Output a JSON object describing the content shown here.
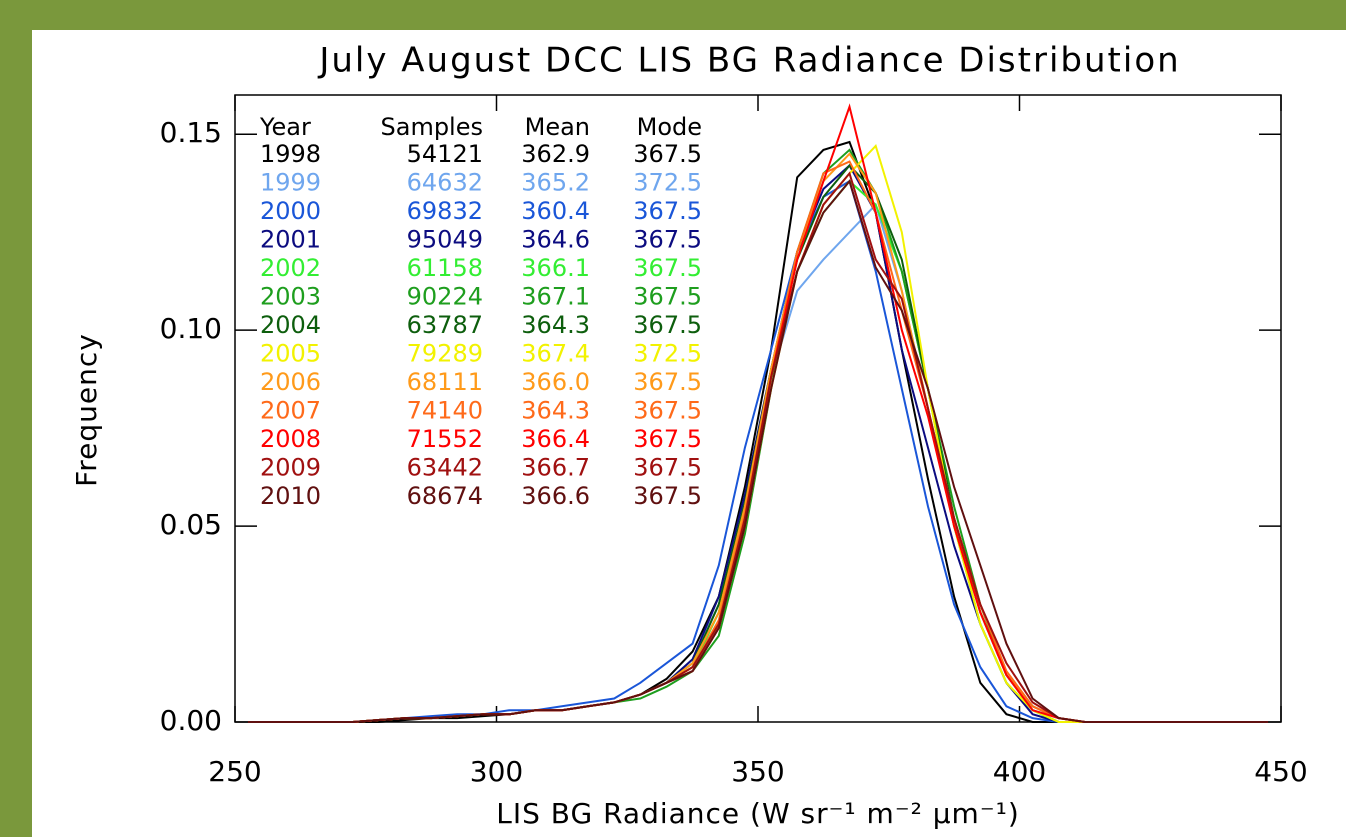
{
  "chart_data": {
    "type": "line",
    "title": "July August DCC LIS BG Radiance Distribution",
    "x_label": "LIS BG Radiance (W sr⁻¹ m⁻² μm⁻¹)",
    "y_label": "Frequency",
    "xlim": [
      250,
      450
    ],
    "ylim": [
      0,
      0.16
    ],
    "xticks": [
      250,
      300,
      350,
      400,
      450
    ],
    "yticks": [
      {
        "value": 0,
        "label": "0.00"
      },
      {
        "value": 0.05,
        "label": "0.05"
      },
      {
        "value": 0.1,
        "label": "0.10"
      },
      {
        "value": 0.15,
        "label": "0.15"
      }
    ],
    "legend_columns": [
      "Year",
      "Samples",
      "Mean",
      "Mode"
    ],
    "x": [
      252.5,
      257.5,
      262.5,
      267.5,
      272.5,
      277.5,
      282.5,
      287.5,
      292.5,
      297.5,
      302.5,
      307.5,
      312.5,
      317.5,
      322.5,
      327.5,
      332.5,
      337.5,
      342.5,
      347.5,
      352.5,
      357.5,
      362.5,
      367.5,
      372.5,
      377.5,
      382.5,
      387.5,
      392.5,
      397.5,
      402.5,
      407.5,
      412.5,
      417.5,
      422.5,
      427.5,
      432.5,
      437.5,
      442.5,
      447.5
    ],
    "series": [
      {
        "name": "1998",
        "color": "#000000",
        "samples": 54121,
        "mean": "362.9",
        "mode": 367.5,
        "values": [
          0,
          0,
          0,
          0,
          0,
          0,
          0.0005,
          0.001,
          0.001,
          0.0015,
          0.002,
          0.003,
          0.003,
          0.004,
          0.005,
          0.007,
          0.011,
          0.018,
          0.032,
          0.06,
          0.095,
          0.139,
          0.146,
          0.148,
          0.13,
          0.095,
          0.062,
          0.032,
          0.01,
          0.002,
          0,
          0,
          0,
          0,
          0,
          0,
          0,
          0,
          0,
          0
        ]
      },
      {
        "name": "1999",
        "color": "#6fa6ee",
        "samples": 64632,
        "mean": "365.2",
        "mode": 372.5,
        "values": [
          0,
          0,
          0,
          0,
          0,
          0.0005,
          0.001,
          0.001,
          0.0015,
          0.002,
          0.002,
          0.003,
          0.003,
          0.004,
          0.005,
          0.007,
          0.01,
          0.016,
          0.03,
          0.058,
          0.088,
          0.11,
          0.118,
          0.125,
          0.132,
          0.11,
          0.08,
          0.05,
          0.028,
          0.012,
          0.003,
          0.001,
          0,
          0,
          0,
          0,
          0,
          0,
          0,
          0
        ]
      },
      {
        "name": "2000",
        "color": "#1a56d8",
        "samples": 69832,
        "mean": "360.4",
        "mode": 367.5,
        "values": [
          0,
          0,
          0,
          0,
          0,
          0.0005,
          0.001,
          0.0015,
          0.002,
          0.002,
          0.003,
          0.003,
          0.004,
          0.005,
          0.006,
          0.01,
          0.015,
          0.02,
          0.04,
          0.07,
          0.095,
          0.12,
          0.134,
          0.138,
          0.115,
          0.085,
          0.055,
          0.03,
          0.014,
          0.004,
          0.001,
          0,
          0,
          0,
          0,
          0,
          0,
          0,
          0,
          0
        ]
      },
      {
        "name": "2001",
        "color": "#0c0c80",
        "samples": 95049,
        "mean": "364.6",
        "mode": 367.5,
        "values": [
          0,
          0,
          0,
          0,
          0,
          0.0005,
          0.001,
          0.001,
          0.0015,
          0.002,
          0.002,
          0.003,
          0.003,
          0.004,
          0.005,
          0.007,
          0.01,
          0.016,
          0.032,
          0.058,
          0.09,
          0.12,
          0.136,
          0.142,
          0.13,
          0.095,
          0.07,
          0.045,
          0.025,
          0.01,
          0.002,
          0,
          0,
          0,
          0,
          0,
          0,
          0,
          0,
          0
        ]
      },
      {
        "name": "2002",
        "color": "#33ee33",
        "samples": 61158,
        "mean": "366.1",
        "mode": 367.5,
        "values": [
          0,
          0,
          0,
          0,
          0,
          0.0005,
          0.001,
          0.001,
          0.0015,
          0.002,
          0.002,
          0.003,
          0.003,
          0.004,
          0.005,
          0.007,
          0.01,
          0.014,
          0.028,
          0.055,
          0.088,
          0.115,
          0.13,
          0.138,
          0.132,
          0.115,
          0.085,
          0.05,
          0.025,
          0.01,
          0.003,
          0,
          0,
          0,
          0,
          0,
          0,
          0,
          0,
          0
        ]
      },
      {
        "name": "2003",
        "color": "#1e9e1e",
        "samples": 90224,
        "mean": "367.1",
        "mode": 367.5,
        "values": [
          0,
          0,
          0,
          0,
          0,
          0.0005,
          0.001,
          0.001,
          0.0015,
          0.002,
          0.002,
          0.003,
          0.003,
          0.004,
          0.005,
          0.006,
          0.009,
          0.013,
          0.022,
          0.048,
          0.085,
          0.12,
          0.14,
          0.146,
          0.135,
          0.115,
          0.085,
          0.055,
          0.03,
          0.012,
          0.003,
          0,
          0,
          0,
          0,
          0,
          0,
          0,
          0,
          0
        ]
      },
      {
        "name": "2004",
        "color": "#0d5e0d",
        "samples": 63787,
        "mean": "364.3",
        "mode": 367.5,
        "values": [
          0,
          0,
          0,
          0,
          0,
          0.0005,
          0.001,
          0.001,
          0.0015,
          0.002,
          0.002,
          0.003,
          0.003,
          0.004,
          0.005,
          0.007,
          0.01,
          0.015,
          0.03,
          0.056,
          0.09,
          0.118,
          0.134,
          0.142,
          0.135,
          0.118,
          0.085,
          0.052,
          0.028,
          0.012,
          0.004,
          0.001,
          0,
          0,
          0,
          0,
          0,
          0,
          0,
          0
        ]
      },
      {
        "name": "2005",
        "color": "#f2f200",
        "samples": 79289,
        "mean": "367.4",
        "mode": 372.5,
        "values": [
          0,
          0,
          0,
          0,
          0,
          0.0005,
          0.001,
          0.001,
          0.0015,
          0.002,
          0.002,
          0.003,
          0.003,
          0.004,
          0.005,
          0.007,
          0.01,
          0.014,
          0.025,
          0.05,
          0.085,
          0.115,
          0.132,
          0.14,
          0.147,
          0.125,
          0.085,
          0.05,
          0.025,
          0.01,
          0.003,
          0,
          0,
          0,
          0,
          0,
          0,
          0,
          0,
          0
        ]
      },
      {
        "name": "2006",
        "color": "#ff9a1a",
        "samples": 68111,
        "mean": "366.0",
        "mode": 367.5,
        "values": [
          0,
          0,
          0,
          0,
          0,
          0.0005,
          0.001,
          0.001,
          0.0015,
          0.002,
          0.002,
          0.003,
          0.003,
          0.004,
          0.005,
          0.007,
          0.01,
          0.015,
          0.028,
          0.055,
          0.09,
          0.12,
          0.138,
          0.145,
          0.135,
          0.11,
          0.08,
          0.05,
          0.028,
          0.012,
          0.004,
          0.001,
          0,
          0,
          0,
          0,
          0,
          0,
          0,
          0
        ]
      },
      {
        "name": "2007",
        "color": "#ff6a1a",
        "samples": 74140,
        "mean": "364.3",
        "mode": 367.5,
        "values": [
          0,
          0,
          0,
          0,
          0,
          0.0005,
          0.001,
          0.001,
          0.0015,
          0.002,
          0.002,
          0.003,
          0.003,
          0.004,
          0.005,
          0.007,
          0.01,
          0.014,
          0.026,
          0.053,
          0.088,
          0.12,
          0.14,
          0.143,
          0.13,
          0.105,
          0.08,
          0.052,
          0.03,
          0.013,
          0.004,
          0.001,
          0,
          0,
          0,
          0,
          0,
          0,
          0,
          0
        ]
      },
      {
        "name": "2008",
        "color": "#ff0000",
        "samples": 71552,
        "mean": "366.4",
        "mode": 367.5,
        "values": [
          0,
          0,
          0,
          0,
          0,
          0.0005,
          0.001,
          0.001,
          0.0015,
          0.002,
          0.002,
          0.003,
          0.003,
          0.004,
          0.005,
          0.007,
          0.01,
          0.013,
          0.024,
          0.05,
          0.088,
          0.118,
          0.138,
          0.157,
          0.13,
          0.1,
          0.078,
          0.05,
          0.028,
          0.012,
          0.003,
          0.001,
          0,
          0,
          0,
          0,
          0,
          0,
          0,
          0
        ]
      },
      {
        "name": "2009",
        "color": "#a01010",
        "samples": 63442,
        "mean": "366.7",
        "mode": 367.5,
        "values": [
          0,
          0,
          0,
          0,
          0,
          0.0005,
          0.001,
          0.001,
          0.0015,
          0.002,
          0.002,
          0.003,
          0.003,
          0.004,
          0.005,
          0.007,
          0.01,
          0.014,
          0.025,
          0.052,
          0.088,
          0.115,
          0.132,
          0.14,
          0.118,
          0.108,
          0.08,
          0.052,
          0.03,
          0.015,
          0.005,
          0.001,
          0,
          0,
          0,
          0,
          0,
          0,
          0,
          0
        ]
      },
      {
        "name": "2010",
        "color": "#601010",
        "samples": 68674,
        "mean": "366.6",
        "mode": 367.5,
        "values": [
          0,
          0,
          0,
          0,
          0,
          0.0005,
          0.001,
          0.001,
          0.0015,
          0.002,
          0.002,
          0.003,
          0.003,
          0.004,
          0.005,
          0.007,
          0.01,
          0.013,
          0.024,
          0.05,
          0.085,
          0.115,
          0.13,
          0.138,
          0.116,
          0.105,
          0.085,
          0.06,
          0.04,
          0.02,
          0.006,
          0.001,
          0,
          0,
          0,
          0,
          0,
          0,
          0,
          0
        ]
      }
    ]
  }
}
